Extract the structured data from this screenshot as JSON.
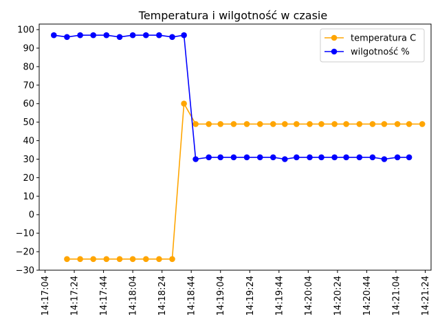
{
  "chart_data": {
    "type": "line",
    "title": "Temperatura i wilgotność w czasie",
    "xlabel": "",
    "ylabel": "",
    "x_axis": {
      "kind": "time",
      "range": [
        "14:17:00",
        "14:21:28"
      ],
      "ticks": [
        "14:17:04",
        "14:17:24",
        "14:17:44",
        "14:18:04",
        "14:18:24",
        "14:18:44",
        "14:19:04",
        "14:19:24",
        "14:19:44",
        "14:20:04",
        "14:20:24",
        "14:20:44",
        "14:21:04",
        "14:21:24"
      ]
    },
    "y_axis": {
      "range": [
        -30,
        103
      ],
      "ticks": [
        -30,
        -20,
        -10,
        0,
        10,
        20,
        30,
        40,
        50,
        60,
        70,
        80,
        90,
        100
      ]
    },
    "grid": false,
    "legend_position": "top-right",
    "x": [
      "14:17:10",
      "14:17:19",
      "14:17:28",
      "14:17:37",
      "14:17:46",
      "14:17:55",
      "14:18:04",
      "14:18:13",
      "14:18:22",
      "14:18:31",
      "14:18:39",
      "14:18:47",
      "14:18:56",
      "14:19:04",
      "14:19:13",
      "14:19:22",
      "14:19:31",
      "14:19:40",
      "14:19:48",
      "14:19:56",
      "14:20:05",
      "14:20:13",
      "14:20:22",
      "14:20:30",
      "14:20:39",
      "14:20:48",
      "14:20:56",
      "14:21:05",
      "14:21:13",
      "14:21:22"
    ],
    "series": [
      {
        "name": "temperatura C",
        "color": "#ffa500",
        "values": [
          null,
          -24,
          -24,
          -24,
          -24,
          -24,
          -24,
          -24,
          -24,
          -24,
          60,
          49,
          49,
          49,
          49,
          49,
          49,
          49,
          49,
          49,
          49,
          49,
          49,
          49,
          49,
          49,
          49,
          49,
          49,
          49
        ],
        "first_value": -24
      },
      {
        "name": "wilgotność %",
        "color": "#0000ff",
        "values": [
          97,
          96,
          97,
          97,
          97,
          96,
          97,
          97,
          97,
          96,
          97,
          30,
          31,
          31,
          31,
          31,
          31,
          31,
          30,
          31,
          31,
          31,
          31,
          31,
          31,
          31,
          30,
          31,
          31,
          null
        ]
      }
    ]
  }
}
